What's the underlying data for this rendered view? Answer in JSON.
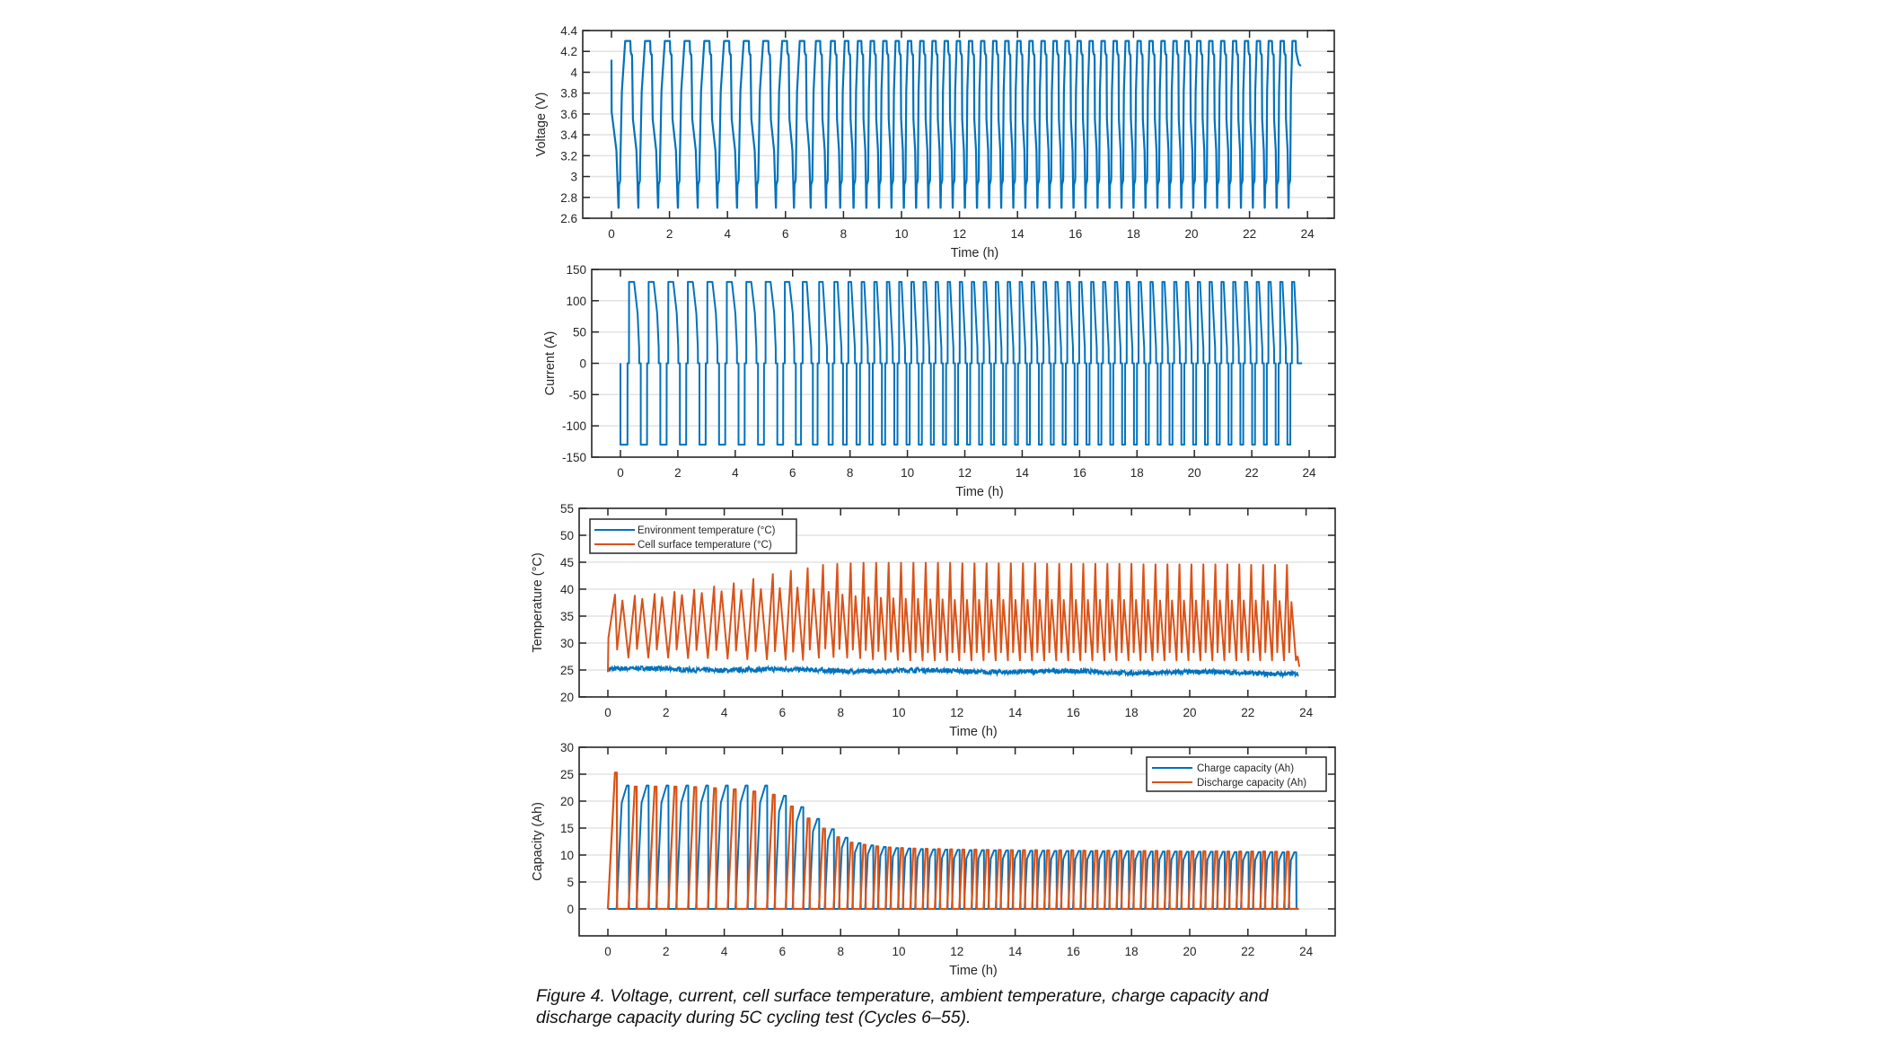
{
  "figure": {
    "caption": "Figure 4. Voltage, current, cell surface temperature, ambient temperature, charge capacity and discharge capacity during 5C cycling test (Cycles 6–55).",
    "caption_line1": "Figure 4. Voltage, current, cell surface temperature, ambient temperature, charge capacity and",
    "caption_line2": "discharge capacity during 5C cycling test (Cycles 6–55)."
  },
  "colors": {
    "blue": "#0072BD",
    "orange": "#D95319",
    "grid": "#e3e3e3",
    "axis": "#262626"
  },
  "chart_data": [
    {
      "id": "voltage",
      "type": "line",
      "title": "",
      "xlabel": "Time (h)",
      "ylabel": "Voltage (V)",
      "xlim": [
        -1,
        25
      ],
      "ylim": [
        2.6,
        4.4
      ],
      "xticks": [
        0,
        2,
        4,
        6,
        8,
        10,
        12,
        14,
        16,
        18,
        20,
        22,
        24
      ],
      "yticks": [
        2.6,
        2.8,
        3,
        3.2,
        3.4,
        3.6,
        3.8,
        4,
        4.2,
        4.4
      ],
      "ytick_labels": [
        "2.6",
        "2.8",
        "3",
        "3.2",
        "3.4",
        "3.6",
        "3.8",
        "4",
        "4.2",
        "4.4"
      ],
      "grid": "y",
      "legend": null,
      "series": [
        {
          "name": "Voltage (V)",
          "color": "#0072BD",
          "description": "Cycling between 2.7 V discharge cutoff and 4.3 V charge limit; initial value ~4.12 V, ends resting at ~4.06 V",
          "start_voltage": 4.12,
          "min_voltage": 2.7,
          "max_voltage": 4.3,
          "end_voltage": 4.06
        }
      ]
    },
    {
      "id": "current",
      "type": "line",
      "title": "",
      "xlabel": "Time (h)",
      "ylabel": "Current (A)",
      "xlim": [
        -1,
        25
      ],
      "ylim": [
        -150,
        150
      ],
      "xticks": [
        0,
        2,
        4,
        6,
        8,
        10,
        12,
        14,
        16,
        18,
        20,
        22,
        24
      ],
      "yticks": [
        -150,
        -100,
        -50,
        0,
        50,
        100,
        150
      ],
      "ytick_labels": [
        "-150",
        "-100",
        "-50",
        "0",
        "50",
        "100",
        "150"
      ],
      "grid": "y",
      "legend": null,
      "series": [
        {
          "name": "Current (A)",
          "color": "#0072BD",
          "description": "Discharge at -130 A, constant-current charge at +130 A followed by CV taper, rest at 0 A",
          "discharge_current": -130,
          "charge_current": 130
        }
      ]
    },
    {
      "id": "temperature",
      "type": "line",
      "title": "",
      "xlabel": "Time (h)",
      "ylabel": "Temperature (°C)",
      "xlim": [
        -1,
        25
      ],
      "ylim": [
        20,
        55
      ],
      "xticks": [
        0,
        2,
        4,
        6,
        8,
        10,
        12,
        14,
        16,
        18,
        20,
        22,
        24
      ],
      "yticks": [
        20,
        25,
        30,
        35,
        40,
        45,
        50,
        55
      ],
      "ytick_labels": [
        "20",
        "25",
        "30",
        "35",
        "40",
        "45",
        "50",
        "55"
      ],
      "grid": "y",
      "legend": "top-left",
      "series": [
        {
          "name": "Environment temperature (°C)",
          "color": "#0072BD",
          "mean": 24.9,
          "start": 25.2,
          "end": 24.4
        },
        {
          "name": "Cell surface temperature (°C)",
          "color": "#D95319",
          "start": 24.6,
          "end": 25.6,
          "trough": 27.3
        }
      ]
    },
    {
      "id": "capacity",
      "type": "line",
      "title": "",
      "xlabel": "Time (h)",
      "ylabel": "Capacity (Ah)",
      "xlim": [
        -1,
        25
      ],
      "ylim": [
        -5,
        30
      ],
      "xticks": [
        0,
        2,
        4,
        6,
        8,
        10,
        12,
        14,
        16,
        18,
        20,
        22,
        24
      ],
      "yticks": [
        0,
        5,
        10,
        15,
        20,
        25,
        30
      ],
      "ytick_labels": [
        "0",
        "5",
        "10",
        "15",
        "20",
        "25",
        "30"
      ],
      "grid": "y",
      "legend": "top-right",
      "series": [
        {
          "name": "Charge capacity (Ah)",
          "color": "#0072BD"
        },
        {
          "name": "Discharge capacity (Ah)",
          "color": "#D95319"
        }
      ]
    }
  ],
  "cycles": {
    "count": 50,
    "first_cycle_number": 6,
    "last_cycle_number": 55,
    "end_time_h": 23.65,
    "discharge_capacity_ah": [
      25.3,
      22.7,
      22.7,
      22.7,
      22.6,
      22.4,
      22.2,
      21.8,
      21.2,
      19.0,
      16.8,
      14.9,
      13.3,
      12.3,
      11.9,
      11.6,
      11.4,
      11.3,
      11.2,
      11.15,
      11.1,
      11.05,
      11.0,
      11.0,
      10.95,
      10.95,
      10.9,
      10.9,
      10.9,
      10.85,
      10.85,
      10.85,
      10.8,
      10.8,
      10.8,
      10.8,
      10.75,
      10.75,
      10.75,
      10.75,
      10.7,
      10.7,
      10.7,
      10.7,
      10.65,
      10.65,
      10.65,
      10.65,
      10.6,
      10.6
    ],
    "charge_capacity_ah": [
      22.9,
      22.9,
      22.9,
      22.9,
      22.9,
      22.9,
      22.9,
      22.9,
      21.0,
      18.9,
      16.7,
      14.8,
      13.2,
      12.2,
      11.8,
      11.5,
      11.3,
      11.2,
      11.1,
      11.05,
      11.0,
      10.95,
      10.9,
      10.9,
      10.85,
      10.85,
      10.8,
      10.8,
      10.8,
      10.75,
      10.75,
      10.75,
      10.7,
      10.7,
      10.7,
      10.7,
      10.65,
      10.65,
      10.65,
      10.65,
      10.6,
      10.6,
      10.6,
      10.6,
      10.55,
      10.55,
      10.55,
      10.55,
      10.5,
      10.5
    ],
    "temp_peak_discharge_c": [
      39.0,
      38.8,
      39.1,
      39.5,
      39.9,
      40.5,
      41.1,
      41.9,
      42.8,
      43.4,
      43.9,
      44.5,
      44.7,
      44.8,
      44.9,
      44.9,
      44.9,
      44.9,
      44.9,
      44.9,
      44.9,
      44.9,
      44.8,
      44.8,
      44.8,
      44.8,
      44.8,
      44.8,
      44.8,
      44.7,
      44.7,
      44.7,
      44.7,
      44.7,
      44.7,
      44.7,
      44.7,
      44.6,
      44.6,
      44.6,
      44.6,
      44.6,
      44.6,
      44.6,
      44.6,
      44.6,
      44.5,
      44.5,
      44.5,
      44.5
    ],
    "temp_peak_charge_c": [
      37.9,
      38.2,
      38.5,
      38.9,
      39.3,
      39.6,
      39.8,
      40.0,
      40.2,
      40.3,
      40.0,
      39.5,
      39.0,
      38.7,
      38.5,
      38.4,
      38.3,
      38.2,
      38.2,
      38.1,
      38.1,
      38.0,
      38.0,
      38.0,
      38.0,
      38.0,
      38.0,
      38.0,
      38.0,
      38.0,
      38.0,
      38.0,
      38.0,
      38.0,
      38.0,
      38.0,
      38.0,
      38.0,
      37.9,
      37.9,
      37.9,
      37.9,
      37.9,
      37.9,
      37.9,
      37.9,
      37.9,
      37.8,
      37.8,
      37.6
    ],
    "temp_trough_c": [
      27.3,
      27.4,
      27.3,
      27.3,
      27.2,
      27.2,
      27.1,
      27.0,
      27.0,
      26.9,
      27.3,
      27.5,
      27.4,
      27.3,
      27.2,
      27.0,
      26.9,
      26.9,
      26.8,
      26.8,
      26.8,
      26.8,
      26.8,
      26.8,
      26.8,
      26.8,
      26.8,
      26.8,
      26.8,
      26.8,
      26.8,
      26.8,
      26.8,
      26.8,
      26.8,
      26.8,
      26.8,
      26.8,
      26.8,
      26.8,
      26.8,
      26.8,
      26.8,
      26.8,
      26.8,
      26.8,
      26.8,
      26.8,
      26.8,
      26.8
    ]
  }
}
